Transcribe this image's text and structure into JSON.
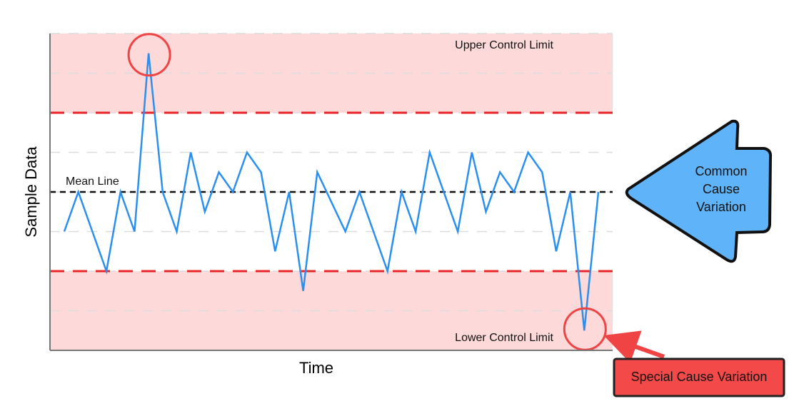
{
  "chart_data": {
    "type": "line",
    "y_label": "Sample Data",
    "x_label": "Time",
    "categories": [
      null,
      null,
      null,
      null,
      null,
      null,
      null,
      null,
      null,
      null,
      null,
      null,
      null,
      null,
      null,
      null,
      null,
      null,
      null,
      null,
      null,
      null,
      null,
      null,
      null,
      null,
      null,
      null,
      null,
      null,
      null,
      null,
      null,
      null,
      null,
      null,
      null,
      null,
      null
    ],
    "series": [
      {
        "name": null,
        "color": "#2b8ff0",
        "values": [
          -1,
          0,
          -1,
          -2,
          0,
          -1,
          3.5,
          0,
          -1,
          1,
          -0.5,
          0.5,
          0,
          1,
          0.5,
          -1.5,
          0,
          -2.5,
          0.5,
          -0.25,
          -1,
          0,
          -1,
          -2,
          0,
          -1,
          1,
          0,
          -1,
          1,
          -0.5,
          0.5,
          0,
          1,
          0.5,
          -1.5,
          0,
          -3.5,
          0
        ]
      }
    ],
    "ylim": [
      -4,
      4
    ],
    "control_limits": [
      {
        "label": "Upper Control Limit",
        "value": 2,
        "color": "#e8262a"
      },
      {
        "label": "Lower Control Limit",
        "value": -2,
        "color": "#e8262a"
      }
    ],
    "mean_line": {
      "label": "Mean Line",
      "value": 0,
      "color": "#111111"
    },
    "out_of_control_zone_color": "#fdd9d9",
    "annotations": {
      "common_cause": "Common Cause Variation",
      "special_cause": "Special Cause Variation"
    },
    "special_points": [
      6,
      37
    ]
  }
}
